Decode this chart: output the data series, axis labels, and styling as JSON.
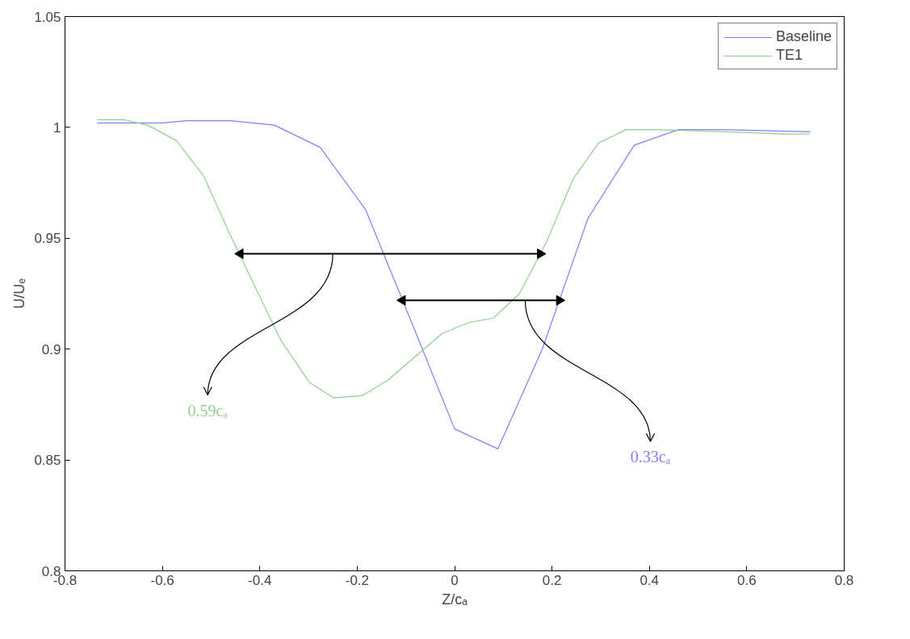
{
  "chart_data": {
    "type": "line",
    "xlabel": "Z/cₐ",
    "ylabel": "U/Uₑ",
    "xlim": [
      -0.8,
      0.8
    ],
    "xticks": [
      -0.8,
      -0.6,
      -0.4,
      -0.2,
      0,
      0.2,
      0.4,
      0.6,
      0.8
    ],
    "ylim": [
      0.8,
      1.05
    ],
    "yticks": [
      0.8,
      0.85,
      0.9,
      0.95,
      1,
      1.05
    ],
    "grid": false,
    "legend": "top right",
    "marker": "none",
    "line_style": "solid",
    "series": [
      {
        "name": "Baseline",
        "color": "#7f7fff",
        "x": [
          -0.734,
          -0.6,
          -0.55,
          -0.46,
          -0.37,
          -0.276,
          -0.183,
          -0.09,
          0.0,
          0.089,
          0.18,
          0.274,
          0.369,
          0.46,
          0.548,
          0.73
        ],
        "values": [
          1.002,
          1.002,
          1.003,
          1.003,
          1.001,
          0.991,
          0.963,
          0.913,
          0.864,
          0.855,
          0.9,
          0.959,
          0.992,
          0.999,
          0.999,
          0.998
        ]
      },
      {
        "name": "TE1",
        "color": "#8fcf8f",
        "x": [
          -0.734,
          -0.68,
          -0.63,
          -0.571,
          -0.515,
          -0.464,
          -0.357,
          -0.298,
          -0.248,
          -0.19,
          -0.137,
          -0.026,
          0.029,
          0.08,
          0.133,
          0.188,
          0.244,
          0.296,
          0.352,
          0.407,
          0.56,
          0.676,
          0.73
        ],
        "values": [
          1.0035,
          1.0035,
          1.001,
          0.994,
          0.978,
          0.953,
          0.904,
          0.885,
          0.878,
          0.879,
          0.886,
          0.907,
          0.912,
          0.914,
          0.925,
          0.948,
          0.977,
          0.993,
          0.999,
          0.999,
          0.998,
          0.997,
          0.997
        ]
      },
      {
        "color": "#000000",
        "marker": "triangle",
        "x": [
          -0.44,
          0.176
        ],
        "values": [
          0.943,
          0.943
        ]
      },
      {
        "color": "#000000",
        "marker": "triangle",
        "x": [
          -0.107,
          0.215
        ],
        "values": [
          0.922,
          0.922
        ]
      }
    ],
    "annotations": [
      {
        "text": "0.59cₐ",
        "x": -0.25,
        "y": 0.943
      },
      {
        "text": "0.33cₐ",
        "x": 0.145,
        "y": 0.922
      }
    ]
  }
}
